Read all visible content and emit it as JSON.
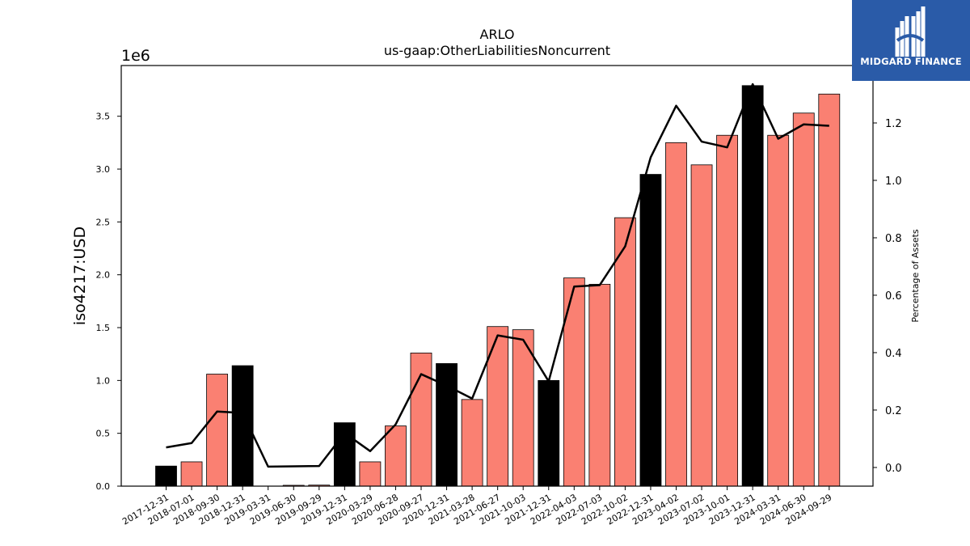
{
  "chart_data": {
    "type": "bar",
    "title": "ARLO",
    "subtitle": "us-gaap:OtherLiabilitiesNoncurrent",
    "ylabel": "iso4217:USD",
    "ylabel_right": "Percentage of Assets",
    "y_multiplier_label": "1e6",
    "ylim": [
      0,
      3980000
    ],
    "y2lim": [
      -0.065,
      1.4
    ],
    "yticks": [
      "0.0",
      "0.5",
      "1.0",
      "1.5",
      "2.0",
      "2.5",
      "3.0",
      "3.5"
    ],
    "y2ticks": [
      "0.0",
      "0.2",
      "0.4",
      "0.6",
      "0.8",
      "1.0",
      "1.2"
    ],
    "categories": [
      "2017-12-31",
      "2018-07-01",
      "2018-09-30",
      "2018-12-31",
      "2019-03-31",
      "2019-06-30",
      "2019-09-29",
      "2019-12-31",
      "2020-03-29",
      "2020-06-28",
      "2020-09-27",
      "2020-12-31",
      "2021-03-28",
      "2021-06-27",
      "2021-10-03",
      "2021-12-31",
      "2022-04-03",
      "2022-07-03",
      "2022-10-02",
      "2022-12-31",
      "2023-04-02",
      "2023-07-02",
      "2023-10-01",
      "2023-12-31",
      "2024-03-31",
      "2024-06-30",
      "2024-09-29"
    ],
    "series": [
      {
        "kind": "bar",
        "values": [
          190000,
          230000,
          1060000,
          1140000,
          0,
          8000,
          10000,
          600000,
          230000,
          570000,
          1260000,
          1160000,
          820000,
          1510000,
          1480000,
          1000000,
          1970000,
          1910000,
          2540000,
          2950000,
          3250000,
          3040000,
          3320000,
          3790000,
          3320000,
          3530000,
          3710000
        ],
        "highlight": [
          true,
          false,
          false,
          true,
          false,
          false,
          false,
          true,
          false,
          false,
          false,
          true,
          false,
          false,
          false,
          true,
          false,
          false,
          false,
          true,
          false,
          false,
          false,
          true,
          false,
          false,
          false
        ]
      },
      {
        "kind": "line",
        "axis": "right",
        "values": [
          0.07,
          0.085,
          0.195,
          0.19,
          0.003,
          0.004,
          0.005,
          0.12,
          0.057,
          0.15,
          0.325,
          0.285,
          0.24,
          0.46,
          0.445,
          0.3,
          0.63,
          0.635,
          0.77,
          1.08,
          1.26,
          1.135,
          1.115,
          1.335,
          1.145,
          1.195,
          1.19
        ]
      }
    ],
    "colors": {
      "bar": "#fa8072",
      "bar_highlight": "#000000",
      "line": "#000000",
      "bar_edge": "#000000"
    }
  },
  "branding": {
    "logo_text": "MIDGARD FINANCE",
    "logo_icon": "midgard-logo-icon"
  }
}
